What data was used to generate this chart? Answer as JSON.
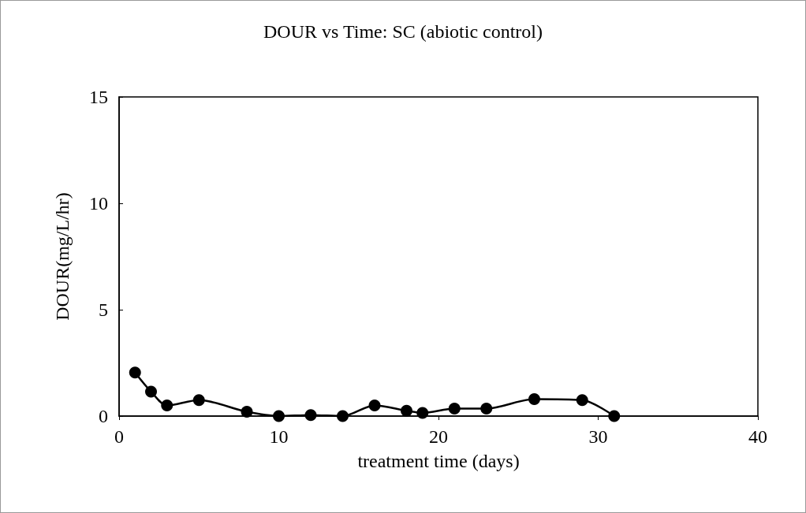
{
  "chart_data": {
    "type": "line",
    "title": "DOUR vs Time: SC (abiotic control)",
    "xlabel": "treatment time (days)",
    "ylabel": "DOUR(mg/L/hr)",
    "x": [
      1,
      2,
      3,
      5,
      8,
      10,
      12,
      14,
      16,
      18,
      19,
      21,
      23,
      26,
      29,
      31
    ],
    "series": [
      {
        "color": "#000000",
        "values": [
          2.05,
          1.15,
          0.5,
          0.75,
          0.2,
          0,
          0.05,
          0,
          0.5,
          0.25,
          0.15,
          0.35,
          0.35,
          0.8,
          0.75,
          0
        ]
      }
    ],
    "xlim": [
      0,
      40
    ],
    "xticks": [
      0,
      10,
      20,
      30,
      40
    ],
    "ylim": [
      0,
      15
    ],
    "yticks": [
      0,
      5,
      10,
      15
    ],
    "grid": false,
    "marker": "circle",
    "line_style": "solid"
  }
}
